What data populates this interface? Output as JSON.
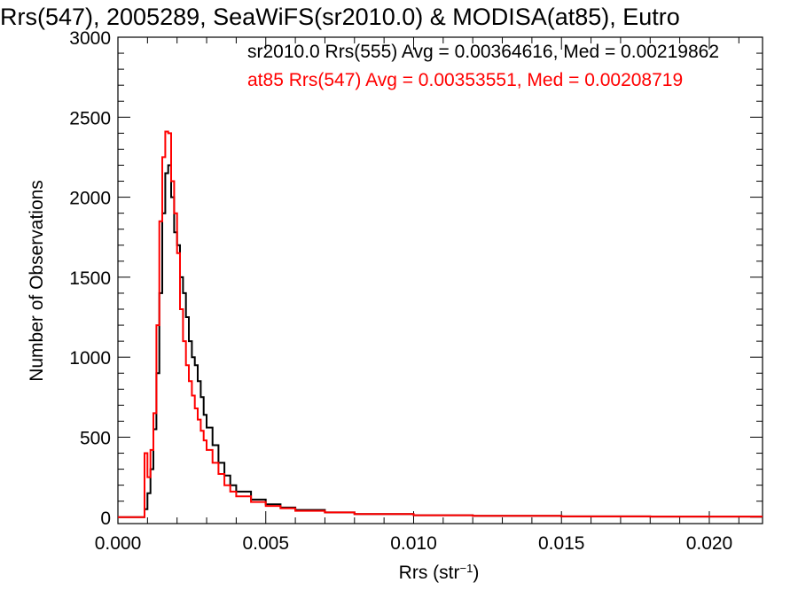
{
  "chart_data": {
    "type": "line",
    "title": "Rrs(547), 2005289, SeaWiFS(sr2010.0) & MODISA(at85), Eutro",
    "xlabel_main": "Rrs (str",
    "xlabel_sup": "−1",
    "xlabel_close": ")",
    "ylabel": "Number of Observations",
    "xlim": [
      0.0,
      0.0218
    ],
    "ylim": [
      -40,
      3000
    ],
    "x_ticks": [
      "0.000",
      "0.005",
      "0.010",
      "0.015",
      "0.020"
    ],
    "x_tick_values": [
      0.0,
      0.005,
      0.01,
      0.015,
      0.02
    ],
    "y_ticks": [
      "0",
      "500",
      "1000",
      "1500",
      "2000",
      "2500",
      "3000"
    ],
    "y_tick_values": [
      0,
      500,
      1000,
      1500,
      2000,
      2500,
      3000
    ],
    "legend_placement": "top",
    "series": [
      {
        "name": "sr2010.0 Rrs(555) Avg = 0.00364616, Med = 0.00219862",
        "color": "#000000",
        "x": [
          0.0,
          0.0009,
          0.001,
          0.0011,
          0.0012,
          0.0013,
          0.0014,
          0.0015,
          0.0016,
          0.0017,
          0.0018,
          0.0019,
          0.002,
          0.0021,
          0.0022,
          0.0023,
          0.0024,
          0.0025,
          0.0026,
          0.0027,
          0.0028,
          0.0029,
          0.003,
          0.0032,
          0.0034,
          0.0036,
          0.0038,
          0.004,
          0.0045,
          0.005,
          0.0055,
          0.006,
          0.007,
          0.008,
          0.01,
          0.012,
          0.015,
          0.018,
          0.0218
        ],
        "y": [
          0,
          50,
          150,
          300,
          550,
          900,
          1400,
          1900,
          2150,
          2200,
          2000,
          1780,
          1700,
          1500,
          1400,
          1250,
          1100,
          1000,
          950,
          850,
          750,
          640,
          560,
          450,
          340,
          260,
          200,
          160,
          110,
          80,
          60,
          45,
          30,
          20,
          12,
          8,
          5,
          4,
          2
        ]
      },
      {
        "name": "at85 Rrs(547) Avg = 0.00353551, Med = 0.00208719",
        "color": "#ff0000",
        "x": [
          0.0,
          0.0009,
          0.001,
          0.0011,
          0.0012,
          0.0013,
          0.0014,
          0.0015,
          0.0016,
          0.0017,
          0.0018,
          0.0019,
          0.002,
          0.0021,
          0.0022,
          0.0023,
          0.0024,
          0.0025,
          0.0026,
          0.0027,
          0.0028,
          0.0029,
          0.003,
          0.0032,
          0.0034,
          0.0036,
          0.0038,
          0.004,
          0.0045,
          0.005,
          0.0055,
          0.006,
          0.007,
          0.008,
          0.01,
          0.012,
          0.015,
          0.018,
          0.0218
        ],
        "y": [
          0,
          400,
          250,
          420,
          650,
          1200,
          1850,
          2250,
          2410,
          2400,
          2100,
          1900,
          1650,
          1300,
          1100,
          950,
          850,
          760,
          680,
          610,
          540,
          480,
          420,
          340,
          270,
          200,
          160,
          130,
          95,
          70,
          55,
          40,
          30,
          20,
          12,
          8,
          5,
          4,
          2
        ]
      }
    ]
  }
}
